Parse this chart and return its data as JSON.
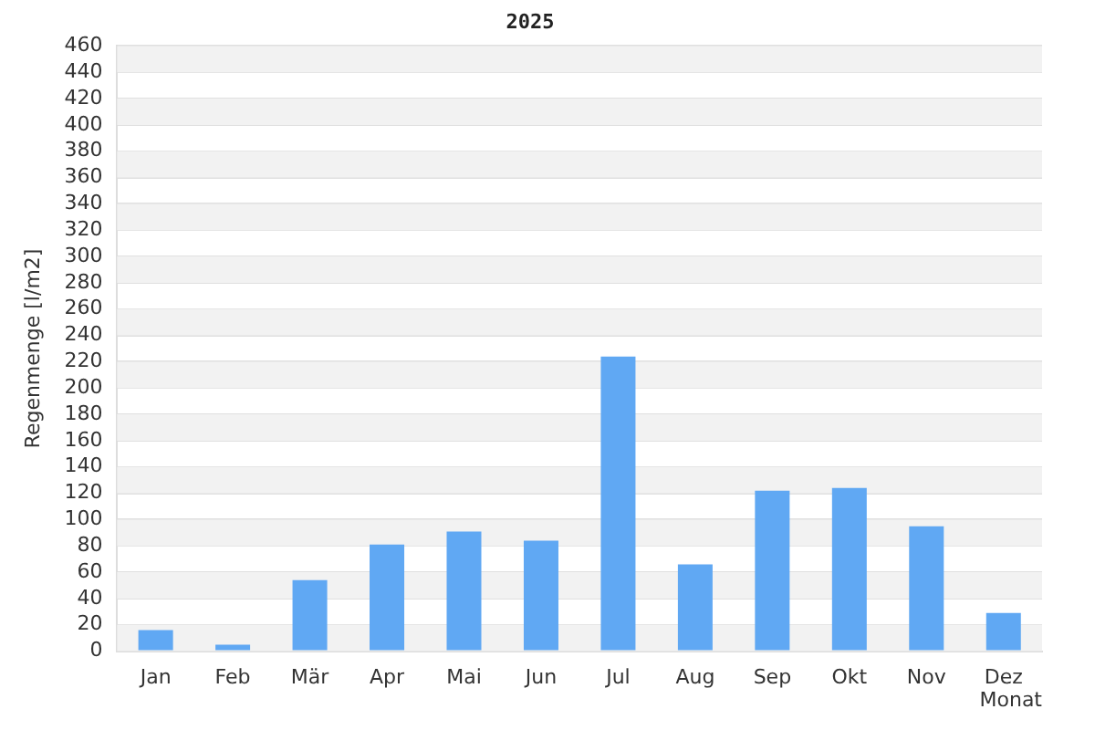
{
  "chart_data": {
    "type": "bar",
    "title": "2025",
    "xlabel": "Monat",
    "ylabel": "Regenmenge [l/m2]",
    "categories": [
      "Jan",
      "Feb",
      "Mär",
      "Apr",
      "Mai",
      "Jun",
      "Jul",
      "Aug",
      "Sep",
      "Okt",
      "Nov",
      "Dez"
    ],
    "values": [
      16,
      5,
      54,
      81,
      91,
      84,
      224,
      66,
      122,
      124,
      95,
      29
    ],
    "color": "#60a8f3",
    "ylim": [
      0,
      460
    ],
    "yticks": [
      0,
      20,
      40,
      60,
      80,
      100,
      120,
      140,
      160,
      180,
      200,
      220,
      240,
      260,
      280,
      300,
      320,
      340,
      360,
      380,
      400,
      420,
      440,
      460
    ],
    "grid": "y",
    "legend": false
  }
}
